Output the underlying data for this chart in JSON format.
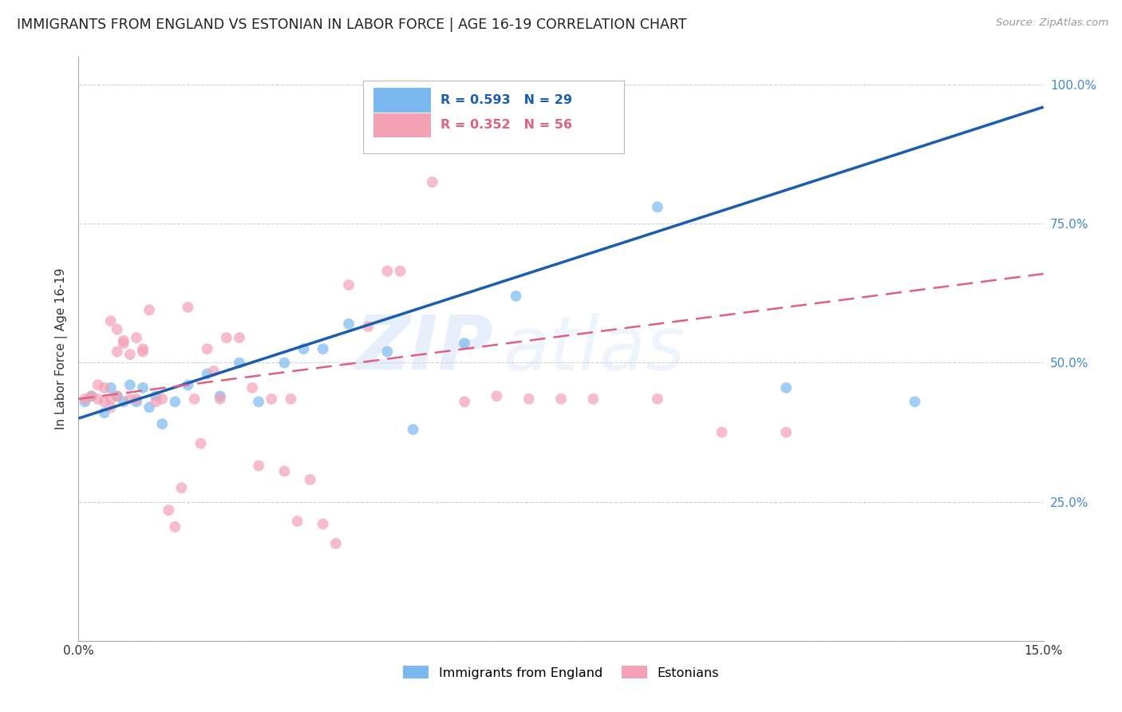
{
  "title": "IMMIGRANTS FROM ENGLAND VS ESTONIAN IN LABOR FORCE | AGE 16-19 CORRELATION CHART",
  "source": "Source: ZipAtlas.com",
  "ylabel": "In Labor Force | Age 16-19",
  "x_min": 0.0,
  "x_max": 0.15,
  "y_min": 0.0,
  "y_max": 1.05,
  "x_ticks": [
    0.0,
    0.03,
    0.06,
    0.09,
    0.12,
    0.15
  ],
  "x_tick_labels": [
    "0.0%",
    "",
    "",
    "",
    "",
    "15.0%"
  ],
  "y_ticks": [
    0.0,
    0.25,
    0.5,
    0.75,
    1.0
  ],
  "y_tick_labels_right": [
    "",
    "25.0%",
    "50.0%",
    "75.0%",
    "100.0%"
  ],
  "england_color": "#7BB8F0",
  "estonian_color": "#F4A0B5",
  "england_line_color": "#1A5CB0",
  "estonian_line_color": "#E06080",
  "england_R": 0.593,
  "england_N": 29,
  "estonian_R": 0.352,
  "estonian_N": 56,
  "legend_england_label": "Immigrants from England",
  "legend_estonian_label": "Estonians",
  "watermark_zip": "ZIP",
  "watermark_atlas": "atlas",
  "england_x": [
    0.001,
    0.002,
    0.004,
    0.005,
    0.006,
    0.007,
    0.008,
    0.009,
    0.01,
    0.011,
    0.012,
    0.013,
    0.015,
    0.017,
    0.02,
    0.022,
    0.025,
    0.028,
    0.032,
    0.035,
    0.038,
    0.042,
    0.048,
    0.052,
    0.06,
    0.068,
    0.09,
    0.11,
    0.13
  ],
  "england_y": [
    0.43,
    0.44,
    0.41,
    0.455,
    0.44,
    0.43,
    0.46,
    0.43,
    0.455,
    0.42,
    0.44,
    0.39,
    0.43,
    0.46,
    0.48,
    0.44,
    0.5,
    0.43,
    0.5,
    0.525,
    0.525,
    0.57,
    0.52,
    0.38,
    0.535,
    0.62,
    0.78,
    0.455,
    0.43
  ],
  "estonian_x": [
    0.001,
    0.002,
    0.003,
    0.003,
    0.004,
    0.004,
    0.005,
    0.005,
    0.005,
    0.006,
    0.006,
    0.006,
    0.007,
    0.007,
    0.008,
    0.008,
    0.009,
    0.009,
    0.01,
    0.01,
    0.011,
    0.012,
    0.013,
    0.014,
    0.015,
    0.016,
    0.017,
    0.018,
    0.019,
    0.02,
    0.021,
    0.022,
    0.023,
    0.025,
    0.027,
    0.028,
    0.03,
    0.032,
    0.033,
    0.034,
    0.036,
    0.038,
    0.04,
    0.042,
    0.045,
    0.048,
    0.05,
    0.055,
    0.06,
    0.065,
    0.07,
    0.075,
    0.08,
    0.09,
    0.1,
    0.11
  ],
  "estonian_y": [
    0.435,
    0.44,
    0.435,
    0.46,
    0.43,
    0.455,
    0.435,
    0.575,
    0.42,
    0.44,
    0.56,
    0.52,
    0.535,
    0.54,
    0.435,
    0.515,
    0.435,
    0.545,
    0.52,
    0.525,
    0.595,
    0.43,
    0.435,
    0.235,
    0.205,
    0.275,
    0.6,
    0.435,
    0.355,
    0.525,
    0.485,
    0.435,
    0.545,
    0.545,
    0.455,
    0.315,
    0.435,
    0.305,
    0.435,
    0.215,
    0.29,
    0.21,
    0.175,
    0.64,
    0.565,
    0.665,
    0.665,
    0.825,
    0.43,
    0.44,
    0.435,
    0.435,
    0.435,
    0.435,
    0.375,
    0.375
  ],
  "eng_line_x0": 0.0,
  "eng_line_y0": 0.4,
  "eng_line_x1": 0.15,
  "eng_line_y1": 0.96,
  "est_line_x0": 0.0,
  "est_line_y0": 0.435,
  "est_line_x1": 0.15,
  "est_line_y1": 0.66
}
